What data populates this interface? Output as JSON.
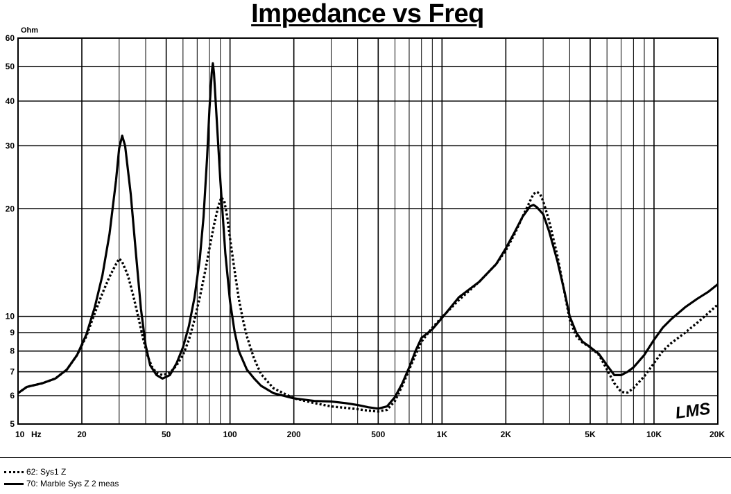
{
  "chart_data": {
    "type": "line",
    "title": "Impedance vs Freq",
    "ylabel": "Ohm",
    "xlabel_unit": "Hz",
    "x_scale": "log",
    "y_scale": "log",
    "xlim": [
      10,
      20000
    ],
    "ylim": [
      5,
      60
    ],
    "x_tick_labels": [
      {
        "value": 10,
        "label": "10"
      },
      {
        "value": 20,
        "label": "20"
      },
      {
        "value": 50,
        "label": "50"
      },
      {
        "value": 100,
        "label": "100"
      },
      {
        "value": 200,
        "label": "200"
      },
      {
        "value": 500,
        "label": "500"
      },
      {
        "value": 1000,
        "label": "1K"
      },
      {
        "value": 2000,
        "label": "2K"
      },
      {
        "value": 5000,
        "label": "5K"
      },
      {
        "value": 10000,
        "label": "10K"
      },
      {
        "value": 20000,
        "label": "20K"
      }
    ],
    "y_tick_labels": [
      {
        "value": 60,
        "label": "60"
      },
      {
        "value": 50,
        "label": "50"
      },
      {
        "value": 40,
        "label": "40"
      },
      {
        "value": 30,
        "label": "30"
      },
      {
        "value": 20,
        "label": "20"
      },
      {
        "value": 10,
        "label": "10"
      },
      {
        "value": 9,
        "label": "9"
      },
      {
        "value": 8,
        "label": "8"
      },
      {
        "value": 7,
        "label": "7"
      },
      {
        "value": 6,
        "label": "6"
      },
      {
        "value": 5,
        "label": "5"
      }
    ],
    "grid": true,
    "legend_position": "bottom-left",
    "watermark": "LMS",
    "series": [
      {
        "name": "62: Sys1 Z",
        "style": "dotted",
        "color": "#000000",
        "points": [
          [
            10,
            6.1
          ],
          [
            11,
            6.35
          ],
          [
            13,
            6.5
          ],
          [
            15,
            6.7
          ],
          [
            17,
            7.1
          ],
          [
            19,
            7.8
          ],
          [
            21,
            8.8
          ],
          [
            23,
            10.2
          ],
          [
            25,
            11.6
          ],
          [
            27,
            12.9
          ],
          [
            29,
            14.0
          ],
          [
            30,
            14.5
          ],
          [
            31,
            14.2
          ],
          [
            33,
            13.0
          ],
          [
            35,
            11.4
          ],
          [
            37,
            9.9
          ],
          [
            39,
            8.6
          ],
          [
            41,
            7.7
          ],
          [
            43,
            7.2
          ],
          [
            45,
            6.95
          ],
          [
            48,
            6.85
          ],
          [
            52,
            6.95
          ],
          [
            56,
            7.3
          ],
          [
            60,
            7.8
          ],
          [
            64,
            8.6
          ],
          [
            68,
            9.8
          ],
          [
            72,
            11.3
          ],
          [
            76,
            13.2
          ],
          [
            80,
            15.5
          ],
          [
            84,
            18.0
          ],
          [
            88,
            20.3
          ],
          [
            91,
            21.5
          ],
          [
            94,
            21.0
          ],
          [
            97,
            19.0
          ],
          [
            100,
            16.5
          ],
          [
            105,
            13.5
          ],
          [
            110,
            11.2
          ],
          [
            115,
            9.8
          ],
          [
            120,
            8.8
          ],
          [
            130,
            7.6
          ],
          [
            140,
            6.9
          ],
          [
            160,
            6.3
          ],
          [
            200,
            5.9
          ],
          [
            250,
            5.72
          ],
          [
            300,
            5.6
          ],
          [
            350,
            5.55
          ],
          [
            400,
            5.5
          ],
          [
            450,
            5.45
          ],
          [
            500,
            5.42
          ],
          [
            550,
            5.48
          ],
          [
            600,
            5.8
          ],
          [
            650,
            6.4
          ],
          [
            700,
            7.1
          ],
          [
            750,
            7.8
          ],
          [
            800,
            8.5
          ],
          [
            900,
            9.3
          ],
          [
            1000,
            9.95
          ],
          [
            1200,
            11.1
          ],
          [
            1500,
            12.5
          ],
          [
            1800,
            14.0
          ],
          [
            2000,
            15.3
          ],
          [
            2200,
            17.0
          ],
          [
            2400,
            19.0
          ],
          [
            2600,
            21.0
          ],
          [
            2700,
            22.0
          ],
          [
            2800,
            22.3
          ],
          [
            2900,
            22.0
          ],
          [
            3000,
            21.0
          ],
          [
            3200,
            18.5
          ],
          [
            3500,
            14.8
          ],
          [
            3800,
            11.5
          ],
          [
            4000,
            9.8
          ],
          [
            4300,
            8.8
          ],
          [
            4600,
            8.45
          ],
          [
            5000,
            8.2
          ],
          [
            5500,
            7.8
          ],
          [
            6000,
            7.1
          ],
          [
            6500,
            6.5
          ],
          [
            7000,
            6.15
          ],
          [
            7500,
            6.12
          ],
          [
            8000,
            6.3
          ],
          [
            9000,
            6.8
          ],
          [
            10000,
            7.4
          ],
          [
            11000,
            8.0
          ],
          [
            12000,
            8.4
          ],
          [
            14000,
            9.0
          ],
          [
            16000,
            9.6
          ],
          [
            18000,
            10.2
          ],
          [
            20000,
            10.8
          ]
        ]
      },
      {
        "name": "70: Marble Sys Z  2 meas",
        "style": "solid",
        "color": "#000000",
        "points": [
          [
            10,
            6.1
          ],
          [
            11,
            6.35
          ],
          [
            13,
            6.5
          ],
          [
            15,
            6.7
          ],
          [
            17,
            7.1
          ],
          [
            19,
            7.8
          ],
          [
            21,
            8.9
          ],
          [
            23,
            10.6
          ],
          [
            25,
            13.0
          ],
          [
            27,
            17.0
          ],
          [
            29,
            24.0
          ],
          [
            30,
            29.5
          ],
          [
            31,
            32.0
          ],
          [
            32,
            30.0
          ],
          [
            34,
            22.0
          ],
          [
            36,
            15.0
          ],
          [
            38,
            10.5
          ],
          [
            40,
            8.3
          ],
          [
            42,
            7.3
          ],
          [
            45,
            6.85
          ],
          [
            48,
            6.7
          ],
          [
            52,
            6.85
          ],
          [
            56,
            7.4
          ],
          [
            60,
            8.2
          ],
          [
            64,
            9.4
          ],
          [
            68,
            11.3
          ],
          [
            72,
            14.5
          ],
          [
            75,
            19.0
          ],
          [
            78,
            28.0
          ],
          [
            80,
            38.0
          ],
          [
            82,
            48.0
          ],
          [
            83,
            51.0
          ],
          [
            84,
            48.0
          ],
          [
            86,
            38.0
          ],
          [
            90,
            24.0
          ],
          [
            95,
            15.0
          ],
          [
            100,
            11.0
          ],
          [
            105,
            9.1
          ],
          [
            110,
            8.0
          ],
          [
            120,
            7.1
          ],
          [
            130,
            6.7
          ],
          [
            140,
            6.4
          ],
          [
            160,
            6.1
          ],
          [
            200,
            5.9
          ],
          [
            250,
            5.8
          ],
          [
            300,
            5.78
          ],
          [
            350,
            5.72
          ],
          [
            400,
            5.65
          ],
          [
            450,
            5.57
          ],
          [
            500,
            5.52
          ],
          [
            550,
            5.6
          ],
          [
            600,
            5.95
          ],
          [
            650,
            6.5
          ],
          [
            700,
            7.2
          ],
          [
            750,
            8.0
          ],
          [
            800,
            8.7
          ],
          [
            900,
            9.2
          ],
          [
            1000,
            9.9
          ],
          [
            1200,
            11.3
          ],
          [
            1500,
            12.5
          ],
          [
            1800,
            14.0
          ],
          [
            2000,
            15.5
          ],
          [
            2200,
            17.2
          ],
          [
            2400,
            19.0
          ],
          [
            2600,
            20.3
          ],
          [
            2700,
            20.5
          ],
          [
            2800,
            20.2
          ],
          [
            3000,
            19.3
          ],
          [
            3200,
            17.3
          ],
          [
            3500,
            14.3
          ],
          [
            3800,
            11.6
          ],
          [
            4000,
            10.0
          ],
          [
            4300,
            9.0
          ],
          [
            4600,
            8.5
          ],
          [
            5000,
            8.2
          ],
          [
            5500,
            7.85
          ],
          [
            6000,
            7.3
          ],
          [
            6500,
            6.85
          ],
          [
            7000,
            6.85
          ],
          [
            7500,
            7.0
          ],
          [
            8000,
            7.2
          ],
          [
            9000,
            7.8
          ],
          [
            10000,
            8.6
          ],
          [
            11000,
            9.3
          ],
          [
            12000,
            9.8
          ],
          [
            14000,
            10.6
          ],
          [
            16000,
            11.2
          ],
          [
            18000,
            11.7
          ],
          [
            20000,
            12.3
          ]
        ]
      }
    ]
  }
}
